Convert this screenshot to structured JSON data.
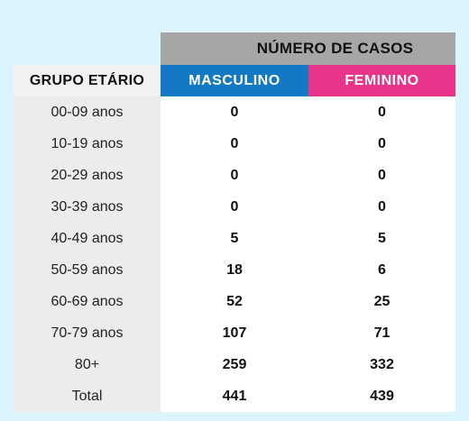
{
  "header": {
    "cases_label": "NÚMERO DE CASOS",
    "group_label": "GRUPO ETÁRIO",
    "male_label": "MASCULINO",
    "female_label": "FEMININO"
  },
  "colors": {
    "male": "#1479c4",
    "female": "#e8358a",
    "header_gray": "#a6a6a6",
    "background": "#dcf4fb"
  },
  "rows": [
    {
      "group": "00-09 anos",
      "male": "0",
      "female": "0"
    },
    {
      "group": "10-19 anos",
      "male": "0",
      "female": "0"
    },
    {
      "group": "20-29 anos",
      "male": "0",
      "female": "0"
    },
    {
      "group": "30-39 anos",
      "male": "0",
      "female": "0"
    },
    {
      "group": "40-49 anos",
      "male": "5",
      "female": "5"
    },
    {
      "group": "50-59 anos",
      "male": "18",
      "female": "6"
    },
    {
      "group": "60-69 anos",
      "male": "52",
      "female": "25"
    },
    {
      "group": "70-79 anos",
      "male": "107",
      "female": "71"
    },
    {
      "group": "80+",
      "male": "259",
      "female": "332"
    },
    {
      "group": "Total",
      "male": "441",
      "female": "439"
    }
  ]
}
